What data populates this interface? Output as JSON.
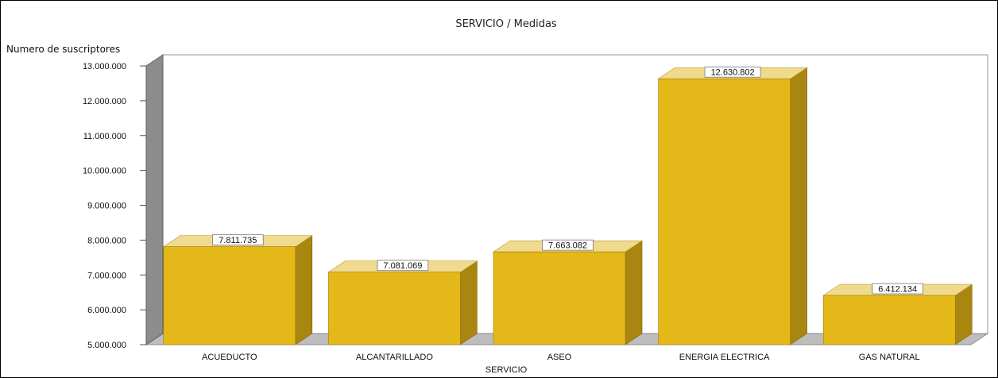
{
  "chart_data": {
    "type": "bar",
    "title": "SERVICIO / Medidas",
    "xlabel": "SERVICIO",
    "ylabel": "Numero de suscriptores",
    "categories": [
      "ACUEDUCTO",
      "ALCANTARILLADO",
      "ASEO",
      "ENERGIA ELECTRICA",
      "GAS NATURAL"
    ],
    "values": [
      7811735,
      7081069,
      7663082,
      12630802,
      6412134
    ],
    "value_labels": [
      "7.811.735",
      "7.081.069",
      "7.663.082",
      "12.630.802",
      "6.412.134"
    ],
    "ylim": [
      5000000,
      13000000
    ],
    "yticks": [
      5000000,
      6000000,
      7000000,
      8000000,
      9000000,
      10000000,
      11000000,
      12000000,
      13000000
    ],
    "ytick_labels": [
      "5.000.000",
      "6.000.000",
      "7.000.000",
      "8.000.000",
      "9.000.000",
      "10.000.000",
      "11.000.000",
      "12.000.000",
      "13.000.000"
    ],
    "style": "3d",
    "grid": false,
    "colors": {
      "bar_front": "#E4B818",
      "bar_top": "#F0DA8E",
      "bar_side": "#A88610",
      "wall": "#8C8C8C",
      "floor": "#BDBDBD"
    }
  }
}
